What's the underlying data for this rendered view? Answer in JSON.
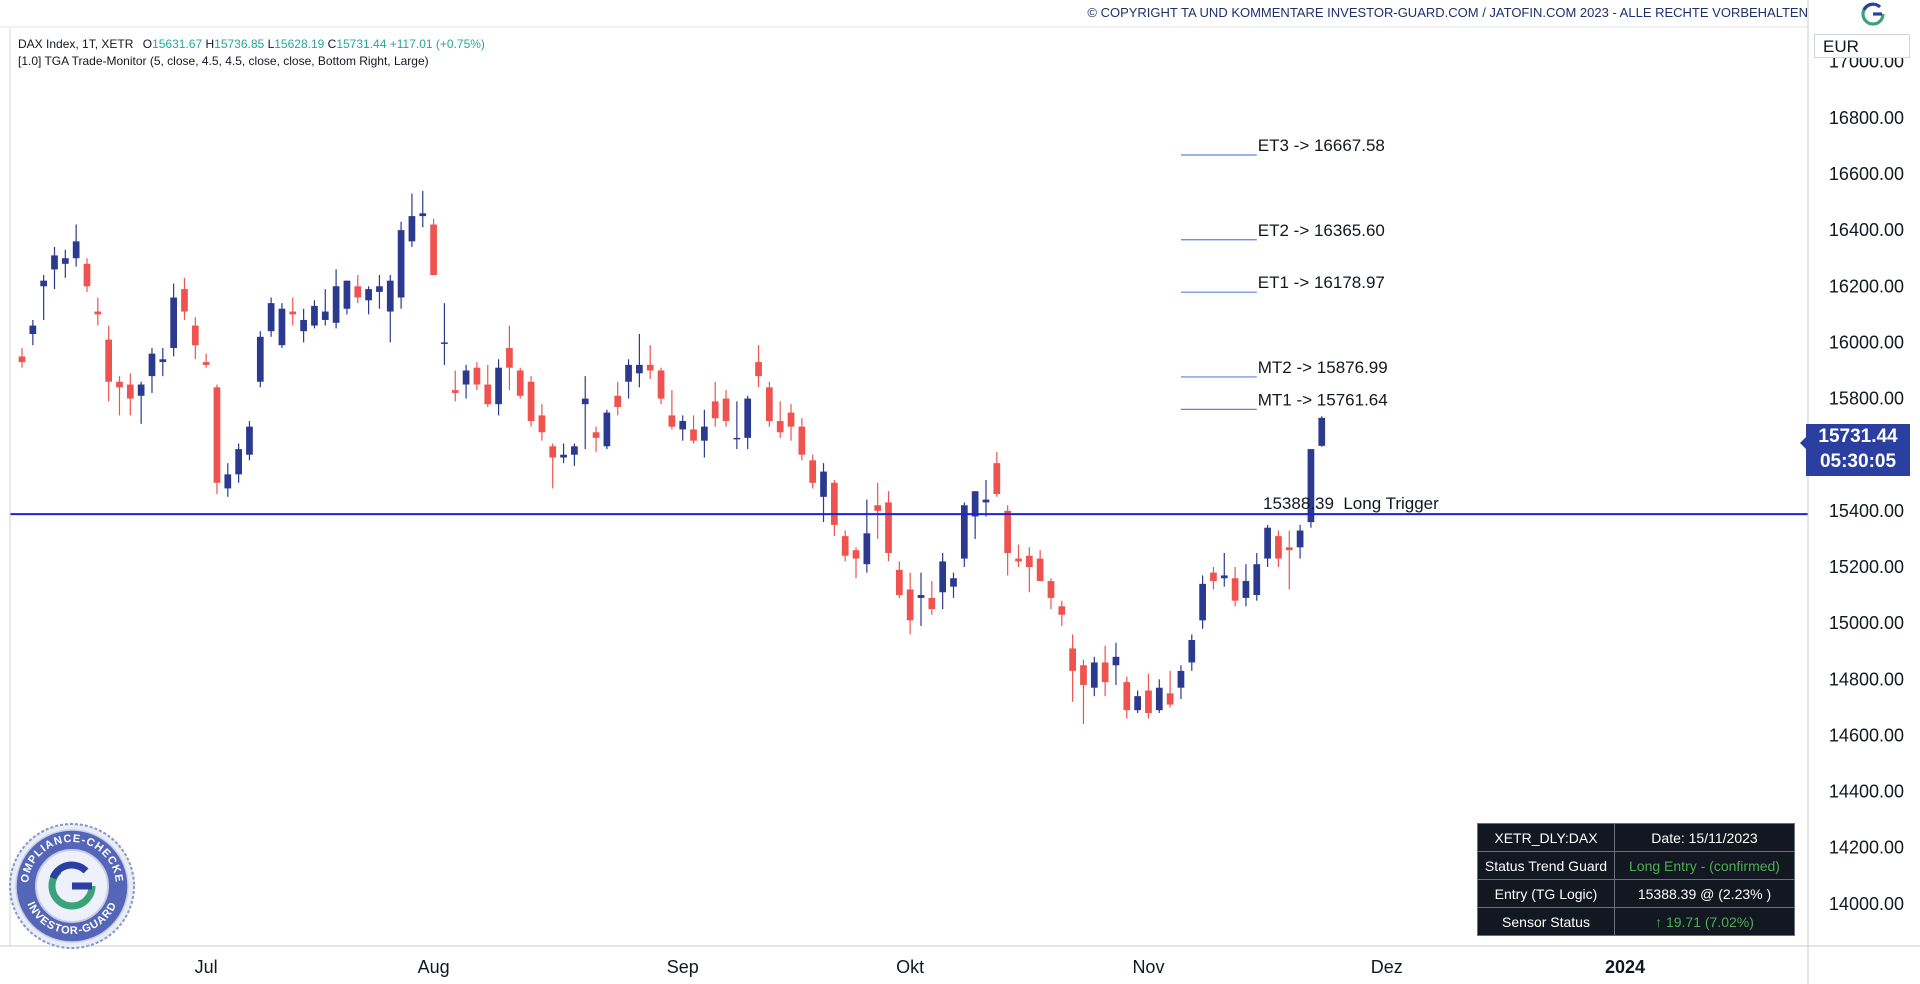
{
  "header": {
    "copyright": "© COPYRIGHT TA UND KOMMENTARE INVESTOR-GUARD.COM / JATOFIN.COM 2023 - ALLE RECHTE VORBEHALTEN"
  },
  "legend": {
    "symbol": "DAX Index, 1T, XETR",
    "o_label": "O",
    "o_value": "15631.67",
    "h_label": "H",
    "h_value": "15736.85",
    "l_label": "L",
    "l_value": "15628.19",
    "c_label": "C",
    "c_value": "15731.44",
    "change": "+117.01 (+0.75%)",
    "indicator": "[1.0] TGA Trade-Monitor (5, close, 4.5, 4.5, close, close, Bottom Right, Large)"
  },
  "currency": "EUR",
  "last_price": "15731.44",
  "countdown": "05:30:05",
  "colors": {
    "up": "#2b3a8f",
    "down": "#ef5350",
    "trigger_line": "#1a24d6",
    "target_line": "#5b7fe6",
    "badge": "#2b3fa0",
    "panel_bg": "#131722",
    "status_green": "#4caf50"
  },
  "status_table": {
    "symbol": "XETR_DLY:DAX",
    "date": "Date: 15/11/2023",
    "trend_label": "Status Trend Guard",
    "trend_value": "Long Entry - (confirmed)",
    "entry_label": "Entry (TG Logic)",
    "entry_value": "15388.39 @ (2.23% )",
    "sensor_label": "Sensor Status",
    "sensor_value": "↑ 19.71 (7.02%)"
  },
  "seal": {
    "top_text": "COMPLIANCE-CHECKED",
    "bottom_text": "INVESTOR-GUARD"
  },
  "chart_data": {
    "type": "candlestick",
    "y_axis": {
      "range": [
        13850,
        17120
      ],
      "ticks": [
        14000,
        14200,
        14400,
        14600,
        14800,
        15000,
        15200,
        15400,
        15600,
        15800,
        16000,
        16200,
        16400,
        16600,
        16800,
        17000
      ],
      "tick_labels": [
        "14000.00",
        "14200.00",
        "14400.00",
        "14600.00",
        "14800.00",
        "15000.00",
        "15200.00",
        "15400.00",
        "15600.00",
        "15800.00",
        "16000.00",
        "16200.00",
        "16400.00",
        "16600.00",
        "16800.00",
        "17000.00"
      ]
    },
    "x_axis": {
      "labels": [
        {
          "text": "Jul",
          "index": 17
        },
        {
          "text": "Aug",
          "index": 38
        },
        {
          "text": "Sep",
          "index": 61
        },
        {
          "text": "Okt",
          "index": 82
        },
        {
          "text": "Nov",
          "index": 104
        },
        {
          "text": "Dez",
          "index": 126
        },
        {
          "text": "2024",
          "index": 148
        }
      ],
      "total_slots": 166
    },
    "levels": [
      {
        "label": "ET3 -> 16667.58",
        "value": 16667.58,
        "start_index": 107,
        "end_index": 114
      },
      {
        "label": "ET2 -> 16365.60",
        "value": 16365.6,
        "start_index": 107,
        "end_index": 114
      },
      {
        "label": "ET1 -> 16178.97",
        "value": 16178.97,
        "start_index": 107,
        "end_index": 114
      },
      {
        "label": "MT2 -> 15876.99",
        "value": 15876.99,
        "start_index": 107,
        "end_index": 114
      },
      {
        "label": "MT1 -> 15761.64",
        "value": 15761.64,
        "start_index": 107,
        "end_index": 114
      }
    ],
    "trigger": {
      "label": "15388.39  Long Trigger",
      "value": 15388.39
    },
    "candles": [
      [
        15950,
        15980,
        15910,
        15930
      ],
      [
        16030,
        16080,
        15990,
        16060
      ],
      [
        16200,
        16240,
        16080,
        16220
      ],
      [
        16260,
        16340,
        16190,
        16310
      ],
      [
        16280,
        16330,
        16230,
        16300
      ],
      [
        16300,
        16420,
        16270,
        16360
      ],
      [
        16280,
        16300,
        16180,
        16200
      ],
      [
        16110,
        16160,
        16060,
        16100
      ],
      [
        16010,
        16060,
        15790,
        15860
      ],
      [
        15860,
        15880,
        15740,
        15840
      ],
      [
        15850,
        15890,
        15740,
        15800
      ],
      [
        15810,
        15860,
        15710,
        15850
      ],
      [
        15880,
        15980,
        15820,
        15960
      ],
      [
        15930,
        15980,
        15880,
        15940
      ],
      [
        15980,
        16210,
        15950,
        16160
      ],
      [
        16190,
        16230,
        16080,
        16110
      ],
      [
        16060,
        16090,
        15940,
        15990
      ],
      [
        15930,
        15960,
        15910,
        15920
      ],
      [
        15840,
        15850,
        15460,
        15500
      ],
      [
        15480,
        15570,
        15450,
        15530
      ],
      [
        15530,
        15640,
        15500,
        15620
      ],
      [
        15600,
        15720,
        15580,
        15700
      ],
      [
        15860,
        16040,
        15840,
        16020
      ],
      [
        16040,
        16160,
        16020,
        16140
      ],
      [
        15990,
        16140,
        15980,
        16120
      ],
      [
        16110,
        16160,
        16060,
        16100
      ],
      [
        16040,
        16120,
        16000,
        16080
      ],
      [
        16060,
        16150,
        16050,
        16130
      ],
      [
        16080,
        16190,
        16060,
        16110
      ],
      [
        16070,
        16260,
        16050,
        16200
      ],
      [
        16120,
        16220,
        16100,
        16220
      ],
      [
        16200,
        16240,
        16140,
        16160
      ],
      [
        16150,
        16200,
        16100,
        16190
      ],
      [
        16180,
        16240,
        16120,
        16200
      ],
      [
        16110,
        16240,
        16000,
        16220
      ],
      [
        16160,
        16430,
        16120,
        16400
      ],
      [
        16360,
        16530,
        16340,
        16450
      ],
      [
        16450,
        16540,
        16410,
        16460
      ],
      [
        16420,
        16440,
        16240,
        16240
      ],
      [
        16000,
        16140,
        15920,
        16000
      ],
      [
        15830,
        15900,
        15790,
        15820
      ],
      [
        15850,
        15920,
        15800,
        15900
      ],
      [
        15910,
        15930,
        15830,
        15850
      ],
      [
        15850,
        15920,
        15770,
        15780
      ],
      [
        15780,
        15940,
        15740,
        15910
      ],
      [
        15980,
        16060,
        15830,
        15910
      ],
      [
        15900,
        15910,
        15800,
        15810
      ],
      [
        15860,
        15880,
        15700,
        15720
      ],
      [
        15740,
        15780,
        15650,
        15680
      ],
      [
        15630,
        15640,
        15480,
        15590
      ],
      [
        15590,
        15640,
        15570,
        15600
      ],
      [
        15600,
        15640,
        15560,
        15630
      ],
      [
        15780,
        15880,
        15620,
        15800
      ],
      [
        15680,
        15700,
        15610,
        15660
      ],
      [
        15630,
        15760,
        15620,
        15750
      ],
      [
        15810,
        15860,
        15740,
        15770
      ],
      [
        15860,
        15940,
        15800,
        15920
      ],
      [
        15890,
        16030,
        15840,
        15920
      ],
      [
        15920,
        15990,
        15870,
        15900
      ],
      [
        15900,
        15910,
        15780,
        15800
      ],
      [
        15740,
        15830,
        15690,
        15700
      ],
      [
        15690,
        15740,
        15650,
        15720
      ],
      [
        15690,
        15740,
        15640,
        15650
      ],
      [
        15650,
        15760,
        15590,
        15700
      ],
      [
        15790,
        15860,
        15700,
        15730
      ],
      [
        15800,
        15830,
        15700,
        15720
      ],
      [
        15660,
        15790,
        15620,
        15660
      ],
      [
        15660,
        15810,
        15620,
        15800
      ],
      [
        15930,
        15990,
        15840,
        15880
      ],
      [
        15840,
        15860,
        15700,
        15720
      ],
      [
        15720,
        15790,
        15660,
        15680
      ],
      [
        15750,
        15780,
        15650,
        15700
      ],
      [
        15700,
        15730,
        15580,
        15600
      ],
      [
        15580,
        15600,
        15480,
        15500
      ],
      [
        15450,
        15570,
        15360,
        15540
      ],
      [
        15500,
        15510,
        15310,
        15350
      ],
      [
        15310,
        15330,
        15220,
        15240
      ],
      [
        15260,
        15270,
        15160,
        15230
      ],
      [
        15210,
        15440,
        15180,
        15320
      ],
      [
        15420,
        15500,
        15300,
        15400
      ],
      [
        15430,
        15470,
        15220,
        15250
      ],
      [
        15190,
        15220,
        15090,
        15100
      ],
      [
        15120,
        15180,
        14960,
        15010
      ],
      [
        15090,
        15180,
        14990,
        15100
      ],
      [
        15090,
        15150,
        15030,
        15050
      ],
      [
        15110,
        15250,
        15050,
        15220
      ],
      [
        15130,
        15180,
        15090,
        15160
      ],
      [
        15230,
        15430,
        15200,
        15420
      ],
      [
        15380,
        15470,
        15300,
        15470
      ],
      [
        15430,
        15510,
        15380,
        15440
      ],
      [
        15570,
        15610,
        15450,
        15460
      ],
      [
        15400,
        15420,
        15170,
        15250
      ],
      [
        15230,
        15280,
        15200,
        15220
      ],
      [
        15240,
        15270,
        15110,
        15200
      ],
      [
        15230,
        15260,
        15180,
        15150
      ],
      [
        15150,
        15160,
        15050,
        15090
      ],
      [
        15060,
        15080,
        14990,
        15030
      ],
      [
        14910,
        14960,
        14720,
        14830
      ],
      [
        14850,
        14870,
        14640,
        14780
      ],
      [
        14770,
        14880,
        14740,
        14860
      ],
      [
        14860,
        14920,
        14740,
        14790
      ],
      [
        14850,
        14930,
        14780,
        14880
      ],
      [
        14790,
        14810,
        14660,
        14690
      ],
      [
        14690,
        14760,
        14680,
        14740
      ],
      [
        14760,
        14820,
        14660,
        14680
      ],
      [
        14690,
        14800,
        14680,
        14770
      ],
      [
        14750,
        14830,
        14700,
        14710
      ],
      [
        14770,
        14850,
        14730,
        14830
      ],
      [
        14860,
        14960,
        14830,
        14940
      ],
      [
        15010,
        15170,
        14980,
        15140
      ],
      [
        15180,
        15200,
        15120,
        15150
      ],
      [
        15160,
        15250,
        15130,
        15170
      ],
      [
        15160,
        15200,
        15060,
        15080
      ],
      [
        15090,
        15210,
        15060,
        15150
      ],
      [
        15100,
        15250,
        15080,
        15210
      ],
      [
        15230,
        15350,
        15200,
        15340
      ],
      [
        15310,
        15330,
        15200,
        15230
      ],
      [
        15270,
        15330,
        15120,
        15260
      ],
      [
        15270,
        15350,
        15230,
        15330
      ],
      [
        15360,
        15600,
        15340,
        15620
      ],
      [
        15631.67,
        15736.85,
        15628.19,
        15731.44
      ]
    ]
  }
}
